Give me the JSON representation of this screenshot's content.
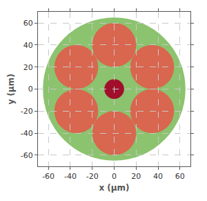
{
  "chart_data": {
    "type": "circles",
    "x_label": "x (µm)",
    "y_label": "y (µm)",
    "circles": [
      {
        "x": 0,
        "y": 0,
        "r": 65,
        "color": "#8cc36e"
      },
      {
        "x": 0,
        "y": 40,
        "r": 20,
        "color": "#d9664f"
      },
      {
        "x": 34.6,
        "y": 20,
        "r": 20,
        "color": "#d9664f"
      },
      {
        "x": 34.6,
        "y": -20,
        "r": 20,
        "color": "#d9664f"
      },
      {
        "x": 0,
        "y": -40,
        "r": 20,
        "color": "#d9664f"
      },
      {
        "x": -34.6,
        "y": -20,
        "r": 20,
        "color": "#d9664f"
      },
      {
        "x": -34.6,
        "y": 20,
        "r": 20,
        "color": "#d9664f"
      },
      {
        "x": 0,
        "y": 0,
        "r": 9,
        "color": "#a0102c"
      }
    ],
    "xlim": [
      -68,
      68
    ],
    "ylim": [
      -68,
      68
    ],
    "xticks": [
      -60,
      -40,
      -20,
      0,
      20,
      40,
      60
    ],
    "yticks": [
      -60,
      -40,
      -20,
      0,
      20,
      40,
      60
    ],
    "grid": true
  }
}
